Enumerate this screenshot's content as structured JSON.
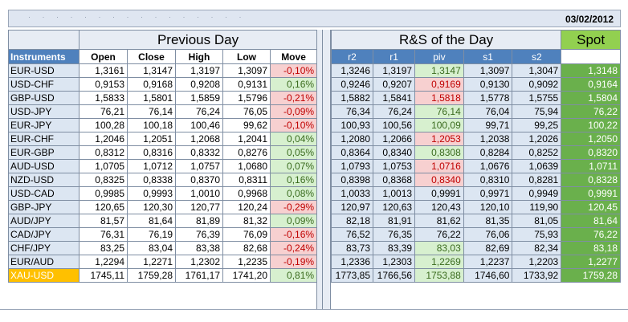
{
  "date": "03/02/2012",
  "previous_day_title": "Previous Day",
  "rs_title": "R&S of the Day",
  "spot_title": "Spot",
  "left_headers": [
    "Instruments",
    "Open",
    "Close",
    "High",
    "Low",
    "Move"
  ],
  "right_headers": [
    "r2",
    "r1",
    "piv",
    "s1",
    "s2",
    ""
  ],
  "rows": [
    {
      "inst": "EUR-USD",
      "open": "1,3161",
      "close": "1,3147",
      "high": "1,3197",
      "low": "1,3097",
      "move": "-0,10%",
      "r2": "1,3246",
      "r1": "1,3197",
      "piv": "1,3147",
      "s1": "1,3097",
      "s2": "1,3047",
      "spot": "1,3148"
    },
    {
      "inst": "USD-CHF",
      "open": "0,9153",
      "close": "0,9168",
      "high": "0,9208",
      "low": "0,9131",
      "move": "0,16%",
      "r2": "0,9246",
      "r1": "0,9207",
      "piv": "0,9169",
      "s1": "0,9130",
      "s2": "0,9092",
      "spot": "0,9164"
    },
    {
      "inst": "GBP-USD",
      "open": "1,5833",
      "close": "1,5801",
      "high": "1,5859",
      "low": "1,5796",
      "move": "-0,21%",
      "r2": "1,5882",
      "r1": "1,5841",
      "piv": "1,5818",
      "s1": "1,5778",
      "s2": "1,5755",
      "spot": "1,5804"
    },
    {
      "inst": "USD-JPY",
      "open": "76,21",
      "close": "76,14",
      "high": "76,24",
      "low": "76,05",
      "move": "-0,09%",
      "r2": "76,34",
      "r1": "76,24",
      "piv": "76,14",
      "s1": "76,04",
      "s2": "75,94",
      "spot": "76,22"
    },
    {
      "inst": "EUR-JPY",
      "open": "100,28",
      "close": "100,18",
      "high": "100,46",
      "low": "99,62",
      "move": "-0,10%",
      "r2": "100,93",
      "r1": "100,56",
      "piv": "100,09",
      "s1": "99,71",
      "s2": "99,25",
      "spot": "100,22"
    },
    {
      "inst": "EUR-CHF",
      "open": "1,2046",
      "close": "1,2051",
      "high": "1,2068",
      "low": "1,2041",
      "move": "0,04%",
      "r2": "1,2080",
      "r1": "1,2066",
      "piv": "1,2053",
      "s1": "1,2038",
      "s2": "1,2026",
      "spot": "1,2050"
    },
    {
      "inst": "EUR-GBP",
      "open": "0,8312",
      "close": "0,8316",
      "high": "0,8332",
      "low": "0,8276",
      "move": "0,05%",
      "r2": "0,8364",
      "r1": "0,8340",
      "piv": "0,8308",
      "s1": "0,8284",
      "s2": "0,8252",
      "spot": "0,8320"
    },
    {
      "inst": "AUD-USD",
      "open": "1,0705",
      "close": "1,0712",
      "high": "1,0757",
      "low": "1,0680",
      "move": "0,07%",
      "r2": "1,0793",
      "r1": "1,0753",
      "piv": "1,0716",
      "s1": "1,0676",
      "s2": "1,0639",
      "spot": "1,0711"
    },
    {
      "inst": "NZD-USD",
      "open": "0,8325",
      "close": "0,8338",
      "high": "0,8370",
      "low": "0,8311",
      "move": "0,16%",
      "r2": "0,8398",
      "r1": "0,8368",
      "piv": "0,8340",
      "s1": "0,8310",
      "s2": "0,8281",
      "spot": "0,8328"
    },
    {
      "inst": "USD-CAD",
      "open": "0,9985",
      "close": "0,9993",
      "high": "1,0010",
      "low": "0,9968",
      "move": "0,08%",
      "r2": "1,0033",
      "r1": "1,0013",
      "piv": "0,9991",
      "s1": "0,9971",
      "s2": "0,9949",
      "spot": "0,9991"
    },
    {
      "inst": "GBP-JPY",
      "open": "120,65",
      "close": "120,30",
      "high": "120,77",
      "low": "120,24",
      "move": "-0,29%",
      "r2": "120,97",
      "r1": "120,63",
      "piv": "120,43",
      "s1": "120,10",
      "s2": "119,90",
      "spot": "120,45"
    },
    {
      "inst": "AUD/JPY",
      "open": "81,57",
      "close": "81,64",
      "high": "81,89",
      "low": "81,32",
      "move": "0,09%",
      "r2": "82,18",
      "r1": "81,91",
      "piv": "81,62",
      "s1": "81,35",
      "s2": "81,05",
      "spot": "81,64"
    },
    {
      "inst": "CAD/JPY",
      "open": "76,31",
      "close": "76,19",
      "high": "76,39",
      "low": "76,09",
      "move": "-0,16%",
      "r2": "76,52",
      "r1": "76,35",
      "piv": "76,22",
      "s1": "76,06",
      "s2": "75,93",
      "spot": "76,22"
    },
    {
      "inst": "CHF/JPY",
      "open": "83,25",
      "close": "83,04",
      "high": "83,38",
      "low": "82,68",
      "move": "-0,24%",
      "r2": "83,73",
      "r1": "83,39",
      "piv": "83,03",
      "s1": "82,69",
      "s2": "82,34",
      "spot": "83,18"
    },
    {
      "inst": "EUR/AUD",
      "open": "1,2294",
      "close": "1,2271",
      "high": "1,2302",
      "low": "1,2235",
      "move": "-0,19%",
      "r2": "1,2336",
      "r1": "1,2303",
      "piv": "1,2269",
      "s1": "1,2237",
      "s2": "1,2203",
      "spot": "1,2277"
    },
    {
      "inst": "XAU-USD",
      "open": "1745,11",
      "close": "1759,28",
      "high": "1761,17",
      "low": "1741,20",
      "move": "0,81%",
      "r2": "1773,85",
      "r1": "1766,56",
      "piv": "1753,88",
      "s1": "1746,60",
      "s2": "1733,92",
      "spot": "1759,28"
    }
  ],
  "piv_colors": [
    "green",
    "red",
    "red",
    "green",
    "green",
    "red",
    "green",
    "red",
    "red",
    "plain",
    "plain",
    "plain",
    "plain",
    "green",
    "green",
    "green"
  ],
  "colors": {
    "header_blue": "#4f81bd",
    "spot_green": "#6ab04c",
    "spot_title_green": "#92d050",
    "gold": "#ffc000",
    "pos_bg": "#d7f0cf",
    "neg_bg": "#f7d0d0"
  }
}
